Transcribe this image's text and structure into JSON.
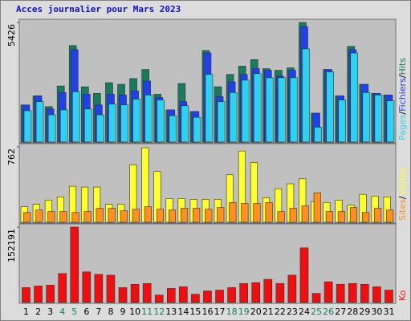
{
  "chart_data": [
    {
      "type": "bar",
      "title": "Acces journalier pour Mars 2023",
      "ylim": [
        0,
        5426
      ],
      "yticks": [
        5426
      ],
      "legend_separator": "/",
      "series": [
        {
          "name": "Hits",
          "color": "#1a7a5e",
          "values": [
            1684,
            2096,
            1609,
            2545,
            4378,
            2507,
            2208,
            2694,
            2619,
            2881,
            3293,
            2170,
            1459,
            2657,
            1385,
            4154,
            2507,
            3068,
            3443,
            3742,
            3330,
            3256,
            3368,
            5426,
            1310,
            3293,
            2096,
            4341,
            2619,
            2208,
            2133
          ]
        },
        {
          "name": "Fichiers",
          "color": "#2040e8",
          "values": [
            1684,
            2096,
            1497,
            2245,
            4191,
            2170,
            1684,
            2170,
            2133,
            2320,
            2769,
            2021,
            1459,
            1834,
            1385,
            4041,
            2058,
            2732,
            3068,
            3330,
            3256,
            2994,
            3256,
            5239,
            1310,
            3293,
            2096,
            4191,
            2619,
            2208,
            2133
          ]
        },
        {
          "name": "Pages",
          "color": "#30d0f0",
          "values": [
            1422,
            1834,
            1235,
            1459,
            2283,
            1497,
            1235,
            1721,
            1684,
            1946,
            2133,
            1908,
            1197,
            1646,
            1123,
            3068,
            1834,
            2245,
            2807,
            3106,
            2919,
            2919,
            2919,
            4228,
            674,
            3181,
            1908,
            4041,
            2245,
            2133,
            1871
          ]
        }
      ]
    },
    {
      "type": "bar",
      "ylim": [
        0,
        762
      ],
      "yticks": [
        762
      ],
      "legend_separator": "/",
      "series": [
        {
          "name": "Visites",
          "color": "#ffff30",
          "values": [
            157,
            182,
            224,
            257,
            364,
            356,
            356,
            182,
            182,
            580,
            753,
            513,
            240,
            240,
            232,
            232,
            232,
            480,
            720,
            604,
            248,
            339,
            389,
            439,
            207,
            199,
            224,
            174,
            282,
            265,
            257
          ]
        },
        {
          "name": "Sites",
          "color": "#ff9020",
          "values": [
            99,
            124,
            108,
            108,
            99,
            108,
            141,
            141,
            116,
            132,
            157,
            132,
            124,
            141,
            141,
            132,
            149,
            199,
            190,
            190,
            199,
            108,
            141,
            166,
            298,
            108,
            108,
            149,
            99,
            141,
            124
          ]
        }
      ]
    },
    {
      "type": "bar",
      "ylim": [
        0,
        152191
      ],
      "yticks": [
        152191
      ],
      "categories": [
        "1",
        "2",
        "3",
        "4",
        "5",
        "6",
        "7",
        "8",
        "9",
        "10",
        "11",
        "12",
        "13",
        "14",
        "15",
        "16",
        "17",
        "18",
        "19",
        "20",
        "21",
        "22",
        "23",
        "24",
        "25",
        "26",
        "27",
        "28",
        "29",
        "30",
        "31"
      ],
      "category_colors": [
        "#000",
        "#000",
        "#000",
        "#1a7a5e",
        "#1a7a5e",
        "#000",
        "#000",
        "#000",
        "#000",
        "#000",
        "#1a7a5e",
        "#1a7a5e",
        "#000",
        "#000",
        "#000",
        "#000",
        "#000",
        "#1a7a5e",
        "#1a7a5e",
        "#000",
        "#000",
        "#000",
        "#000",
        "#000",
        "#1a7a5e",
        "#1a7a5e",
        "#000",
        "#000",
        "#000",
        "#000",
        "#000"
      ],
      "series": [
        {
          "name": "Ko",
          "color": "#ee1010",
          "values": [
            30100,
            33440,
            35110,
            58520,
            152191,
            61860,
            56850,
            55180,
            30100,
            36780,
            38460,
            15050,
            28420,
            31770,
            16720,
            23410,
            25080,
            30100,
            38460,
            40130,
            46820,
            38460,
            55180,
            110350,
            18390,
            41800,
            36780,
            38460,
            36780,
            31770,
            25080
          ]
        }
      ]
    }
  ]
}
